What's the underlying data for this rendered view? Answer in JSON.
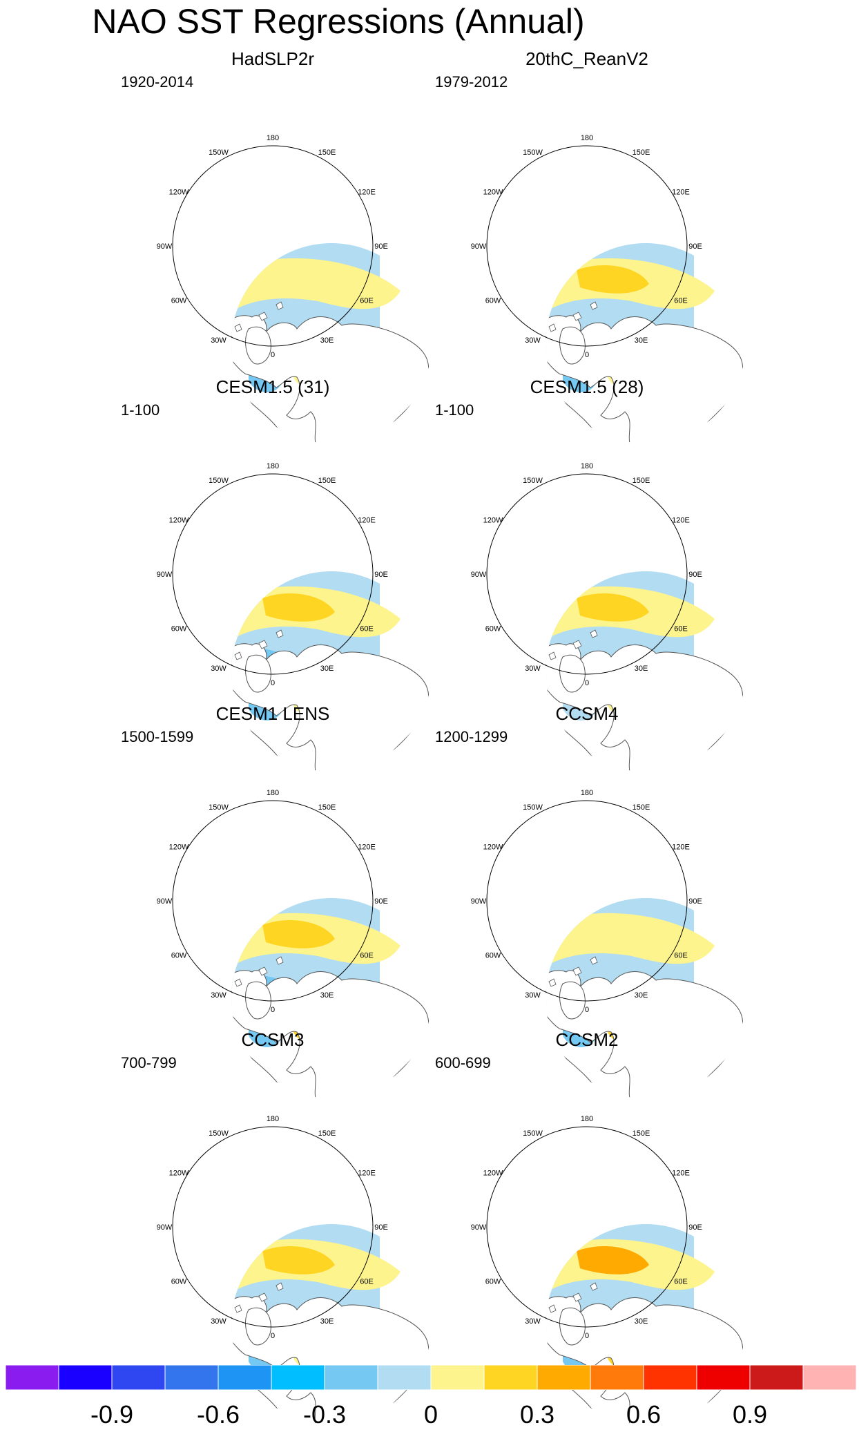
{
  "title": "NAO SST Regressions (Annual)",
  "panels": [
    {
      "title": "HadSLP2r",
      "years": "1920-2014"
    },
    {
      "title": "20thC_ReanV2",
      "years": "1979-2012"
    },
    {
      "title": "CESM1.5 (31)",
      "years": "1-100"
    },
    {
      "title": "CESM1.5 (28)",
      "years": "1-100"
    },
    {
      "title": "CESM1 LENS",
      "years": "1500-1599"
    },
    {
      "title": "CCSM4",
      "years": "1200-1299"
    },
    {
      "title": "CCSM3",
      "years": "700-799"
    },
    {
      "title": "CCSM2",
      "years": "600-699"
    }
  ],
  "longitude_labels": [
    "180",
    "150E",
    "120E",
    "90E",
    "60E",
    "30E",
    "0",
    "30W",
    "60W",
    "90W",
    "120W",
    "150W"
  ],
  "colorbar": {
    "colors": [
      "#8a1cf0",
      "#1a00ff",
      "#2e47f0",
      "#3275ec",
      "#1e95f5",
      "#00beff",
      "#74c8f2",
      "#b1dcf2",
      "#fdf48e",
      "#ffd524",
      "#ffaa00",
      "#ff7a0a",
      "#ff3300",
      "#ee0000",
      "#cc1a1a",
      "#ffb3b3"
    ],
    "labels": [
      "-0.9",
      "-0.6",
      "-0.3",
      "0",
      "0.3",
      "0.6",
      "0.9"
    ]
  }
}
